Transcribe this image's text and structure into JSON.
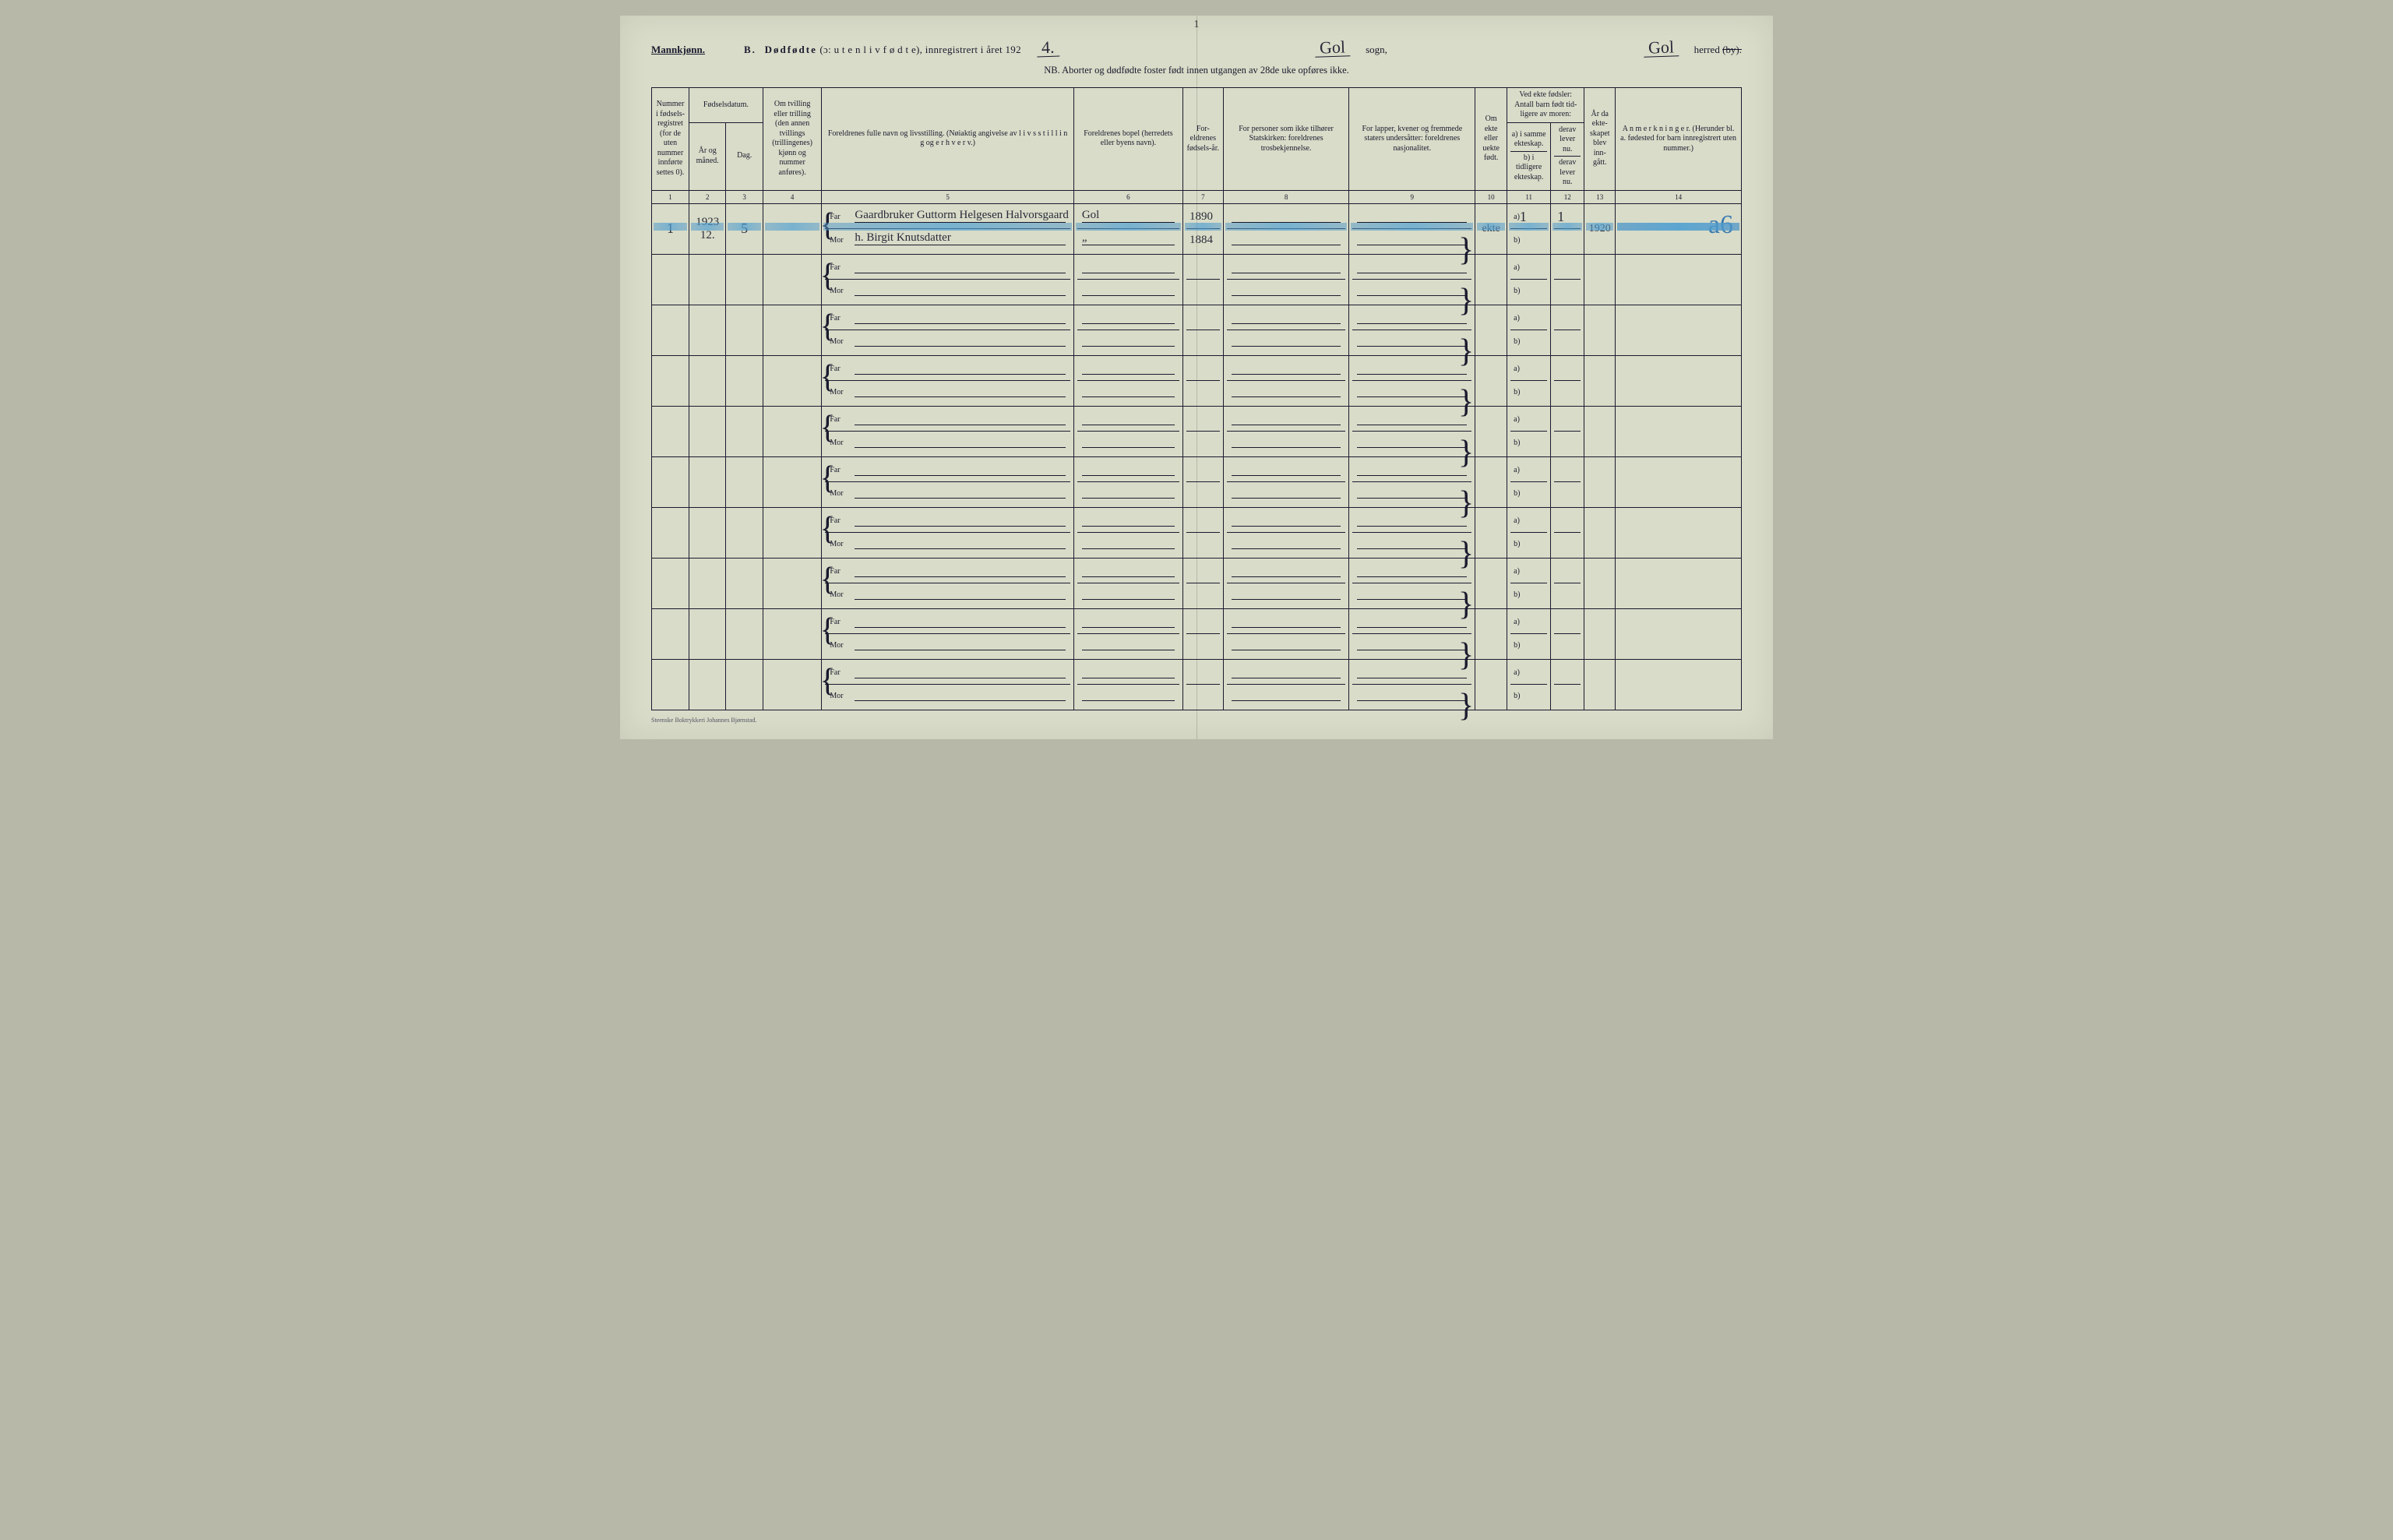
{
  "page_mark": "1",
  "header": {
    "gender": "Mannkjønn.",
    "title_prefix": "B.",
    "title_main": "Dødfødte",
    "title_paren": "(ɔ: u t e n  l i v  f ø d t e),",
    "title_reg": "innregistrert i året 192",
    "year_hw": "4.",
    "sogn_hw": "Gol",
    "sogn_label": "sogn,",
    "herred_hw": "Gol",
    "herred_label_a": "herred",
    "herred_label_b": "(by).",
    "nb": "NB.  Aborter og dødfødte foster født innen utgangen av 28de uke opføres ikke."
  },
  "columns": {
    "c1": "Nummer i fødsels-registret (for de uten nummer innførte settes 0).",
    "c2_group": "Fødselsdatum.",
    "c2a": "År og måned.",
    "c2b": "Dag.",
    "c4": "Om tvilling eller trilling (den annen tvillings (trillingenes) kjønn og nummer anføres).",
    "c5": "Foreldrenes fulle navn og livsstilling. (Nøiaktig angivelse av l i v s s t i l l i n g  og e r h v e r v.)",
    "c6": "Foreldrenes bopel (herredets eller byens navn).",
    "c7": "For-eldrenes fødsels-år.",
    "c8": "For personer som ikke tilhører Statskirken: foreldrenes trosbekjennelse.",
    "c9": "For lapper, kvener og fremmede staters undersåtter: foreldrenes nasjonalitet.",
    "c10": "Om ekte eller uekte født.",
    "c11_group": "Ved ekte fødsler: Antall barn født tid-ligere av moren:",
    "c11a": "a) i samme ekteskap.",
    "c11b": "b) i tidligere ekteskap.",
    "c12a": "derav lever nu.",
    "c12b": "derav lever nu.",
    "c13": "År da ekte-skapet blev inn-gått.",
    "c14": "A n m e r k n i n g e r. (Herunder bl. a. fødested for barn innregistrert uten nummer.)"
  },
  "colnums": [
    "1",
    "2",
    "3",
    "4",
    "5",
    "6",
    "7",
    "8",
    "9",
    "10",
    "11",
    "12",
    "13",
    "14"
  ],
  "row1": {
    "num": "1",
    "year_month": "1923\n12.",
    "day": "5",
    "far": "Gaardbruker Guttorm Helgesen Halvorsgaard",
    "mor": "h. Birgit Knutsdatter",
    "bopel_far": "Gol",
    "bopel_mor": "„",
    "faar_far": "1890",
    "faar_mor": "1884",
    "ekte": "ekte",
    "c11a": "1",
    "c12a": "1",
    "c13": "1920",
    "annot": "a6"
  },
  "labels": {
    "far": "Far",
    "mor": "Mor",
    "a": "a)",
    "b": "b)"
  },
  "footer": "Steenske Boktrykkeri Johannes Bjørnstad.",
  "row_count": 10,
  "colors": {
    "paper": "#d8dcc8",
    "ink": "#1a1a2e",
    "hw": "#2a2a3a",
    "blue": "#3a7ab0"
  }
}
